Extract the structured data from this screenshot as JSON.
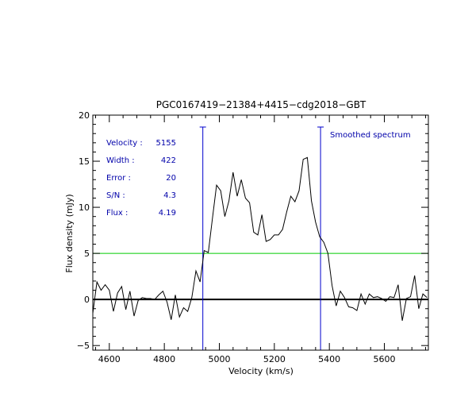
{
  "chart_data": {
    "type": "line",
    "title": "PGC0167419−21384+4415−cdg2018−GBT",
    "xlabel": "Velocity (km/s)",
    "ylabel": "Flux density (mJy)",
    "xlim": [
      4540,
      5760
    ],
    "ylim": [
      -5.5,
      20
    ],
    "xticks": [
      4600,
      4800,
      5000,
      5200,
      5400,
      5600
    ],
    "xtick_labels": [
      "4600",
      "4800",
      "5000",
      "5200",
      "5400",
      "5600"
    ],
    "yticks": [
      -5,
      0,
      5,
      10,
      15,
      20
    ],
    "ytick_labels": [
      "−5",
      "0",
      "5",
      "10",
      "15",
      "20"
    ],
    "grid": false,
    "colors": {
      "spectrum": "#000000",
      "zero_line": "#000000",
      "level_line": "#00cc00",
      "markers": "#0000cc",
      "annotations": "#0000aa"
    },
    "series": [
      {
        "x": [
          4540,
          4555,
          4570,
          4585,
          4600,
          4615,
          4630,
          4645,
          4660,
          4675,
          4690,
          4705,
          4720,
          4735,
          4750,
          4765,
          4780,
          4795,
          4810,
          4825,
          4840,
          4855,
          4870,
          4885,
          4900,
          4915,
          4930,
          4945,
          4960,
          4975,
          4990,
          5005,
          5020,
          5035,
          5050,
          5065,
          5080,
          5095,
          5110,
          5125,
          5140,
          5155,
          5170,
          5185,
          5200,
          5215,
          5230,
          5245,
          5260,
          5275,
          5290,
          5305,
          5320,
          5335,
          5350,
          5365,
          5380,
          5395,
          5410,
          5425,
          5440,
          5455,
          5470,
          5485,
          5500,
          5515,
          5530,
          5545,
          5560,
          5575,
          5590,
          5605,
          5620,
          5635,
          5650,
          5665,
          5680,
          5695,
          5710,
          5725,
          5740,
          5755
        ],
        "y": [
          -1.5,
          1.9,
          1.0,
          1.6,
          1.0,
          -1.3,
          0.7,
          1.4,
          -1.1,
          0.9,
          -1.8,
          -0.1,
          0.2,
          0.1,
          0.1,
          0.0,
          0.5,
          0.9,
          -0.3,
          -2.2,
          0.5,
          -1.9,
          -0.9,
          -1.3,
          0.2,
          3.1,
          1.9,
          5.3,
          5.1,
          8.8,
          12.4,
          11.8,
          9.0,
          10.7,
          13.8,
          11.2,
          13.0,
          11.0,
          10.5,
          7.3,
          7.0,
          9.2,
          6.3,
          6.5,
          7.0,
          7.0,
          7.6,
          9.5,
          11.2,
          10.6,
          11.8,
          15.2,
          15.4,
          10.7,
          8.4,
          6.8,
          6.2,
          5.0,
          1.5,
          -0.7,
          0.9,
          0.2,
          -0.8,
          -0.9,
          -1.2,
          0.6,
          -0.5,
          0.6,
          0.2,
          0.3,
          0.1,
          -0.2,
          0.3,
          0.2,
          1.6,
          -2.3,
          0.1,
          0.3,
          2.6,
          -1.0,
          0.6,
          0.2
        ]
      }
    ],
    "zero_line": 0,
    "level_line": 5,
    "markers": [
      4940,
      5368
    ],
    "annotations": [
      {
        "label": "Velocity :",
        "value": "5155"
      },
      {
        "label": "Width :",
        "value": "422"
      },
      {
        "label": "Error :",
        "value": "20"
      },
      {
        "label": "S/N :",
        "value": "4.3"
      },
      {
        "label": "Flux :",
        "value": "4.19"
      }
    ],
    "smoothed_label": "Smoothed spectrum"
  }
}
